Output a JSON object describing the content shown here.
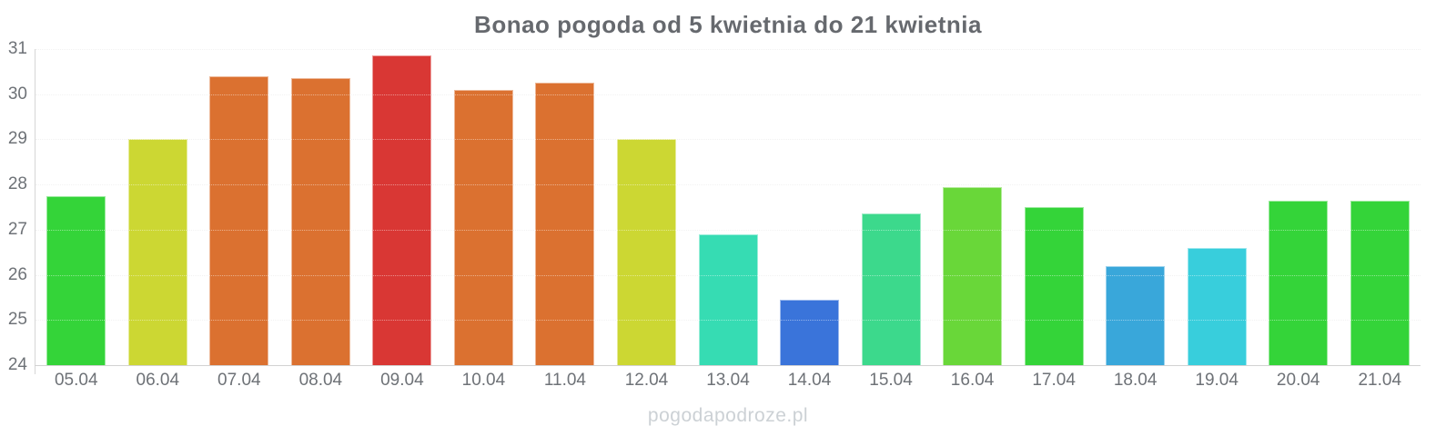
{
  "watermark": "pogodapodroze.pl",
  "chart_data": {
    "type": "bar",
    "title": "Bonao pogoda od 5 kwietnia do 21 kwietnia",
    "xlabel": "",
    "ylabel": "",
    "ylim": [
      24,
      31
    ],
    "yticks": [
      24,
      25,
      26,
      27,
      28,
      29,
      30,
      31
    ],
    "grid": true,
    "legend": false,
    "categories": [
      "05.04",
      "06.04",
      "07.04",
      "08.04",
      "09.04",
      "10.04",
      "11.04",
      "12.04",
      "13.04",
      "14.04",
      "15.04",
      "16.04",
      "17.04",
      "18.04",
      "19.04",
      "20.04",
      "21.04"
    ],
    "values": [
      27.75,
      29.0,
      30.4,
      30.35,
      30.85,
      30.1,
      30.25,
      29.0,
      26.9,
      25.45,
      27.35,
      27.95,
      27.5,
      26.2,
      26.6,
      27.65,
      27.65
    ],
    "colors": [
      "#34d439",
      "#ccd733",
      "#db7130",
      "#db7130",
      "#d93734",
      "#db7130",
      "#db7130",
      "#ccd733",
      "#36dcb3",
      "#3a74da",
      "#3cd98c",
      "#69d739",
      "#34d439",
      "#39a7da",
      "#38cedc",
      "#34d439",
      "#34d439"
    ],
    "units": "°C"
  }
}
